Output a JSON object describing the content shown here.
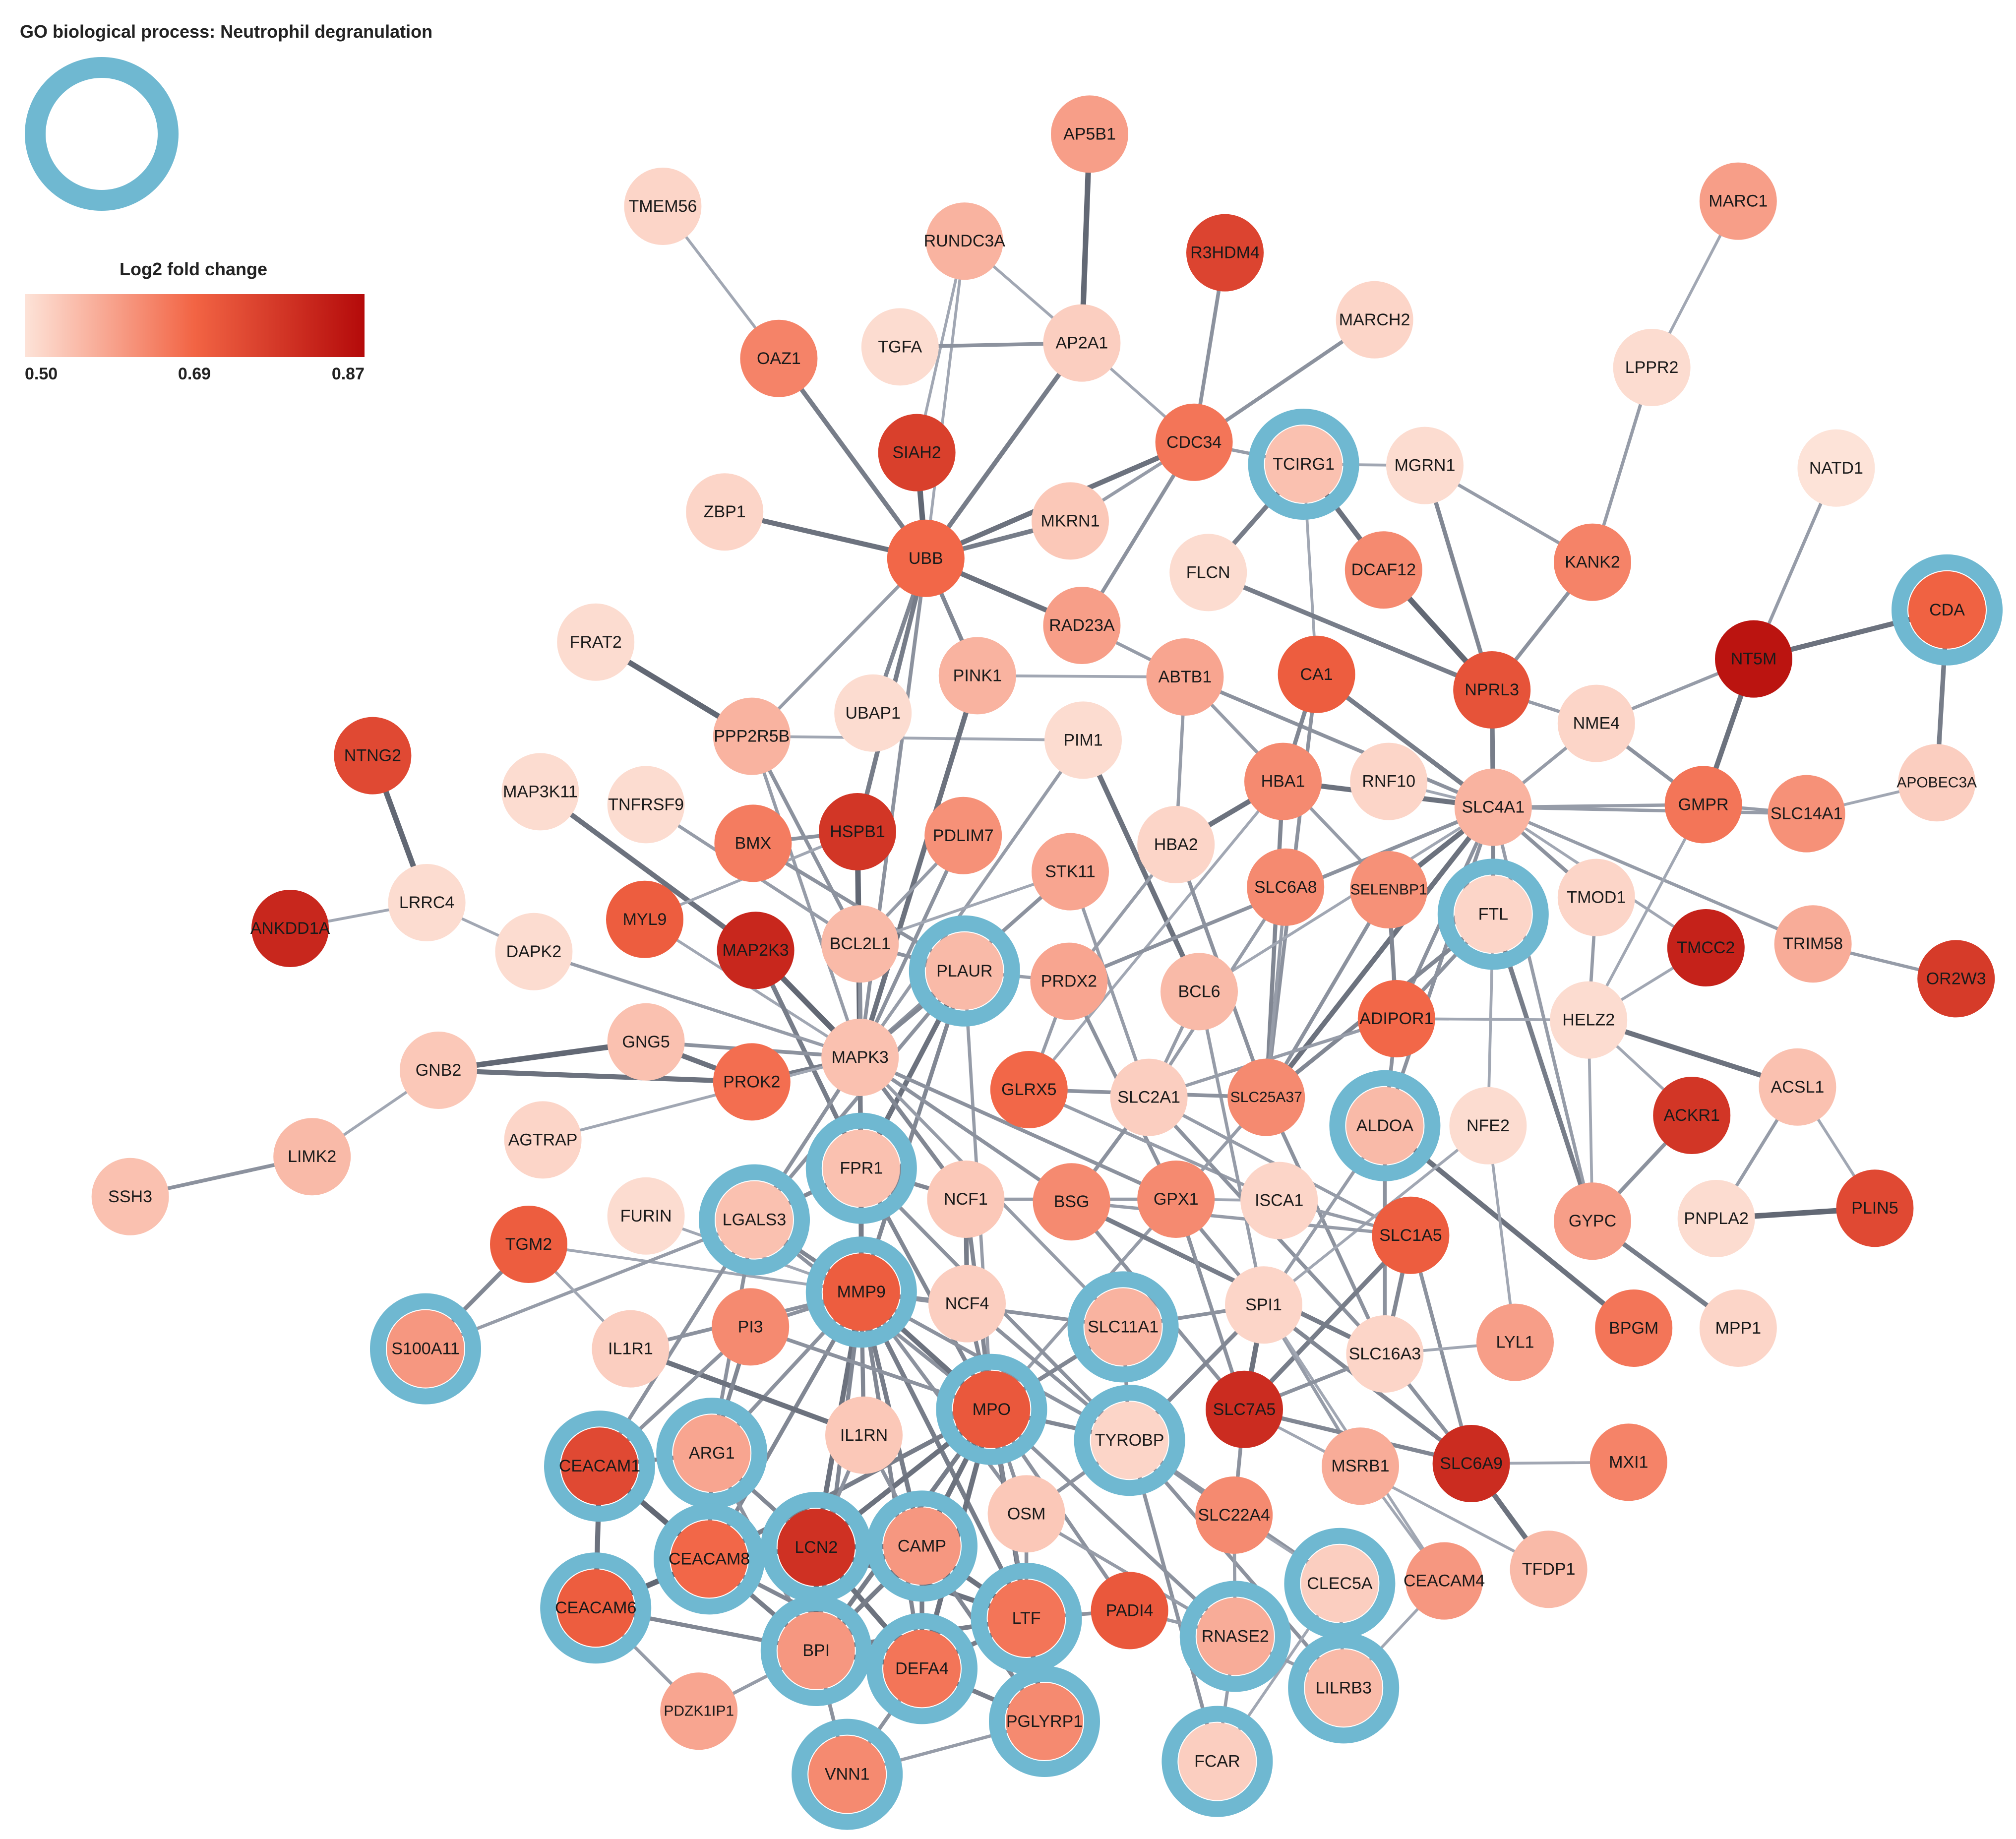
{
  "legend": {
    "go_title": "GO biological process: Neutrophil degranulation",
    "ring_color": "#6fb8d1",
    "fc_title": "Log2 fold change",
    "fc_min": "0.50",
    "fc_mid": "0.69",
    "fc_max": "0.87",
    "gradient_colors": [
      "#fde3d8",
      "#f26444",
      "#b40a0a"
    ]
  },
  "nodes": [
    {
      "id": "AP5B1",
      "fc": 0.6,
      "ring": false
    },
    {
      "id": "TMEM56",
      "fc": 0.52,
      "ring": false
    },
    {
      "id": "RUNDC3A",
      "fc": 0.57,
      "ring": false
    },
    {
      "id": "R3HDM4",
      "fc": 0.75,
      "ring": false
    },
    {
      "id": "MARC1",
      "fc": 0.6,
      "ring": false
    },
    {
      "id": "MARCH2",
      "fc": 0.52,
      "ring": false
    },
    {
      "id": "OAZ1",
      "fc": 0.64,
      "ring": false
    },
    {
      "id": "TGFA",
      "fc": 0.51,
      "ring": false
    },
    {
      "id": "AP2A1",
      "fc": 0.53,
      "ring": false
    },
    {
      "id": "LPPR2",
      "fc": 0.51,
      "ring": false
    },
    {
      "id": "SIAH2",
      "fc": 0.76,
      "ring": false
    },
    {
      "id": "CDC34",
      "fc": 0.66,
      "ring": false
    },
    {
      "id": "TCIRG1",
      "fc": 0.55,
      "ring": true
    },
    {
      "id": "MGRN1",
      "fc": 0.51,
      "ring": false
    },
    {
      "id": "NATD1",
      "fc": 0.5,
      "ring": false
    },
    {
      "id": "ZBP1",
      "fc": 0.52,
      "ring": false
    },
    {
      "id": "UBB",
      "fc": 0.68,
      "ring": false
    },
    {
      "id": "MKRN1",
      "fc": 0.54,
      "ring": false
    },
    {
      "id": "FLCN",
      "fc": 0.51,
      "ring": false
    },
    {
      "id": "DCAF12",
      "fc": 0.63,
      "ring": false
    },
    {
      "id": "KANK2",
      "fc": 0.64,
      "ring": false
    },
    {
      "id": "CDA",
      "fc": 0.69,
      "ring": true
    },
    {
      "id": "FRAT2",
      "fc": 0.51,
      "ring": false
    },
    {
      "id": "RAD23A",
      "fc": 0.6,
      "ring": false
    },
    {
      "id": "NT5M",
      "fc": 0.85,
      "ring": false
    },
    {
      "id": "PINK1",
      "fc": 0.57,
      "ring": false
    },
    {
      "id": "ABTB1",
      "fc": 0.59,
      "ring": false
    },
    {
      "id": "CA1",
      "fc": 0.7,
      "ring": false
    },
    {
      "id": "NPRL3",
      "fc": 0.72,
      "ring": false
    },
    {
      "id": "PPP2R5B",
      "fc": 0.57,
      "ring": false
    },
    {
      "id": "UBAP1",
      "fc": 0.51,
      "ring": false
    },
    {
      "id": "PIM1",
      "fc": 0.51,
      "ring": false
    },
    {
      "id": "NME4",
      "fc": 0.52,
      "ring": false
    },
    {
      "id": "NTNG2",
      "fc": 0.74,
      "ring": false
    },
    {
      "id": "MAP3K11",
      "fc": 0.51,
      "ring": false
    },
    {
      "id": "TNFRSF9",
      "fc": 0.51,
      "ring": false
    },
    {
      "id": "HSPB1",
      "fc": 0.78,
      "ring": false
    },
    {
      "id": "BMX",
      "fc": 0.65,
      "ring": false
    },
    {
      "id": "PDLIM7",
      "fc": 0.62,
      "ring": false
    },
    {
      "id": "HBA1",
      "fc": 0.63,
      "ring": false
    },
    {
      "id": "RNF10",
      "fc": 0.52,
      "ring": false
    },
    {
      "id": "SLC4A1",
      "fc": 0.57,
      "ring": false
    },
    {
      "id": "GMPR",
      "fc": 0.66,
      "ring": false
    },
    {
      "id": "SLC14A1",
      "fc": 0.62,
      "ring": false
    },
    {
      "id": "APOBEC3A",
      "fc": 0.53,
      "ring": false
    },
    {
      "id": "HBA2",
      "fc": 0.52,
      "ring": false
    },
    {
      "id": "STK11",
      "fc": 0.59,
      "ring": false
    },
    {
      "id": "LRRC4",
      "fc": 0.51,
      "ring": false
    },
    {
      "id": "ANKDD1A",
      "fc": 0.81,
      "ring": false
    },
    {
      "id": "MYL9",
      "fc": 0.7,
      "ring": false
    },
    {
      "id": "MAP2K3",
      "fc": 0.81,
      "ring": false
    },
    {
      "id": "BCL2L1",
      "fc": 0.56,
      "ring": false
    },
    {
      "id": "SLC6A8",
      "fc": 0.63,
      "ring": false
    },
    {
      "id": "SELENBP1",
      "fc": 0.62,
      "ring": false
    },
    {
      "id": "FTL",
      "fc": 0.52,
      "ring": true
    },
    {
      "id": "TMOD1",
      "fc": 0.52,
      "ring": false
    },
    {
      "id": "TMCC2",
      "fc": 0.82,
      "ring": false
    },
    {
      "id": "TRIM58",
      "fc": 0.58,
      "ring": false
    },
    {
      "id": "OR2W3",
      "fc": 0.77,
      "ring": false
    },
    {
      "id": "DAPK2",
      "fc": 0.51,
      "ring": false
    },
    {
      "id": "PLAUR",
      "fc": 0.56,
      "ring": true
    },
    {
      "id": "PRDX2",
      "fc": 0.59,
      "ring": false
    },
    {
      "id": "BCL6",
      "fc": 0.56,
      "ring": false
    },
    {
      "id": "ADIPOR1",
      "fc": 0.68,
      "ring": false
    },
    {
      "id": "HELZ2",
      "fc": 0.51,
      "ring": false
    },
    {
      "id": "GNB2",
      "fc": 0.54,
      "ring": false
    },
    {
      "id": "GNG5",
      "fc": 0.55,
      "ring": false
    },
    {
      "id": "MAPK3",
      "fc": 0.55,
      "ring": false
    },
    {
      "id": "PROK2",
      "fc": 0.67,
      "ring": false
    },
    {
      "id": "GLRX5",
      "fc": 0.68,
      "ring": false
    },
    {
      "id": "SLC2A1",
      "fc": 0.53,
      "ring": false
    },
    {
      "id": "SLC25A37",
      "fc": 0.63,
      "ring": false
    },
    {
      "id": "ALDOA",
      "fc": 0.56,
      "ring": true
    },
    {
      "id": "NFE2",
      "fc": 0.51,
      "ring": false
    },
    {
      "id": "ACKR1",
      "fc": 0.78,
      "ring": false
    },
    {
      "id": "ACSL1",
      "fc": 0.55,
      "ring": false
    },
    {
      "id": "AGTRAP",
      "fc": 0.52,
      "ring": false
    },
    {
      "id": "LIMK2",
      "fc": 0.56,
      "ring": false
    },
    {
      "id": "SSH3",
      "fc": 0.55,
      "ring": false
    },
    {
      "id": "FPR1",
      "fc": 0.55,
      "ring": true
    },
    {
      "id": "NCF1",
      "fc": 0.54,
      "ring": false
    },
    {
      "id": "BSG",
      "fc": 0.63,
      "ring": false
    },
    {
      "id": "GPX1",
      "fc": 0.63,
      "ring": false
    },
    {
      "id": "ISCA1",
      "fc": 0.52,
      "ring": false
    },
    {
      "id": "SLC1A5",
      "fc": 0.7,
      "ring": false
    },
    {
      "id": "GYPC",
      "fc": 0.6,
      "ring": false
    },
    {
      "id": "PNPLA2",
      "fc": 0.51,
      "ring": false
    },
    {
      "id": "PLIN5",
      "fc": 0.74,
      "ring": false
    },
    {
      "id": "TGM2",
      "fc": 0.7,
      "ring": false
    },
    {
      "id": "FURIN",
      "fc": 0.51,
      "ring": false
    },
    {
      "id": "LGALS3",
      "fc": 0.55,
      "ring": true
    },
    {
      "id": "MMP9",
      "fc": 0.7,
      "ring": true
    },
    {
      "id": "NCF4",
      "fc": 0.53,
      "ring": false
    },
    {
      "id": "SLC11A1",
      "fc": 0.57,
      "ring": true
    },
    {
      "id": "SPI1",
      "fc": 0.52,
      "ring": false
    },
    {
      "id": "SLC16A3",
      "fc": 0.52,
      "ring": false
    },
    {
      "id": "LYL1",
      "fc": 0.6,
      "ring": false
    },
    {
      "id": "BPGM",
      "fc": 0.66,
      "ring": false
    },
    {
      "id": "MPP1",
      "fc": 0.52,
      "ring": false
    },
    {
      "id": "S100A11",
      "fc": 0.61,
      "ring": true
    },
    {
      "id": "IL1R1",
      "fc": 0.53,
      "ring": false
    },
    {
      "id": "PI3",
      "fc": 0.63,
      "ring": false
    },
    {
      "id": "MPO",
      "fc": 0.71,
      "ring": true
    },
    {
      "id": "TYROBP",
      "fc": 0.52,
      "ring": true
    },
    {
      "id": "SLC7A5",
      "fc": 0.8,
      "ring": false
    },
    {
      "id": "CEACAM1",
      "fc": 0.74,
      "ring": true
    },
    {
      "id": "ARG1",
      "fc": 0.59,
      "ring": true
    },
    {
      "id": "IL1RN",
      "fc": 0.54,
      "ring": false
    },
    {
      "id": "MSRB1",
      "fc": 0.58,
      "ring": false
    },
    {
      "id": "SLC6A9",
      "fc": 0.8,
      "ring": false
    },
    {
      "id": "MXI1",
      "fc": 0.64,
      "ring": false
    },
    {
      "id": "OSM",
      "fc": 0.54,
      "ring": false
    },
    {
      "id": "SLC22A4",
      "fc": 0.63,
      "ring": false
    },
    {
      "id": "CEACAM8",
      "fc": 0.68,
      "ring": true
    },
    {
      "id": "LCN2",
      "fc": 0.79,
      "ring": true
    },
    {
      "id": "CAMP",
      "fc": 0.61,
      "ring": true
    },
    {
      "id": "CLEC5A",
      "fc": 0.53,
      "ring": true
    },
    {
      "id": "CEACAM4",
      "fc": 0.61,
      "ring": false
    },
    {
      "id": "TFDP1",
      "fc": 0.56,
      "ring": false
    },
    {
      "id": "CEACAM6",
      "fc": 0.7,
      "ring": true
    },
    {
      "id": "LTF",
      "fc": 0.66,
      "ring": true
    },
    {
      "id": "PADI4",
      "fc": 0.71,
      "ring": false
    },
    {
      "id": "RNASE2",
      "fc": 0.58,
      "ring": true
    },
    {
      "id": "BPI",
      "fc": 0.61,
      "ring": true
    },
    {
      "id": "DEFA4",
      "fc": 0.66,
      "ring": true
    },
    {
      "id": "LILRB3",
      "fc": 0.56,
      "ring": true
    },
    {
      "id": "PDZK1IP1",
      "fc": 0.59,
      "ring": false
    },
    {
      "id": "PGLYRP1",
      "fc": 0.63,
      "ring": true
    },
    {
      "id": "FCAR",
      "fc": 0.53,
      "ring": true
    },
    {
      "id": "VNN1",
      "fc": 0.63,
      "ring": true
    }
  ]
}
